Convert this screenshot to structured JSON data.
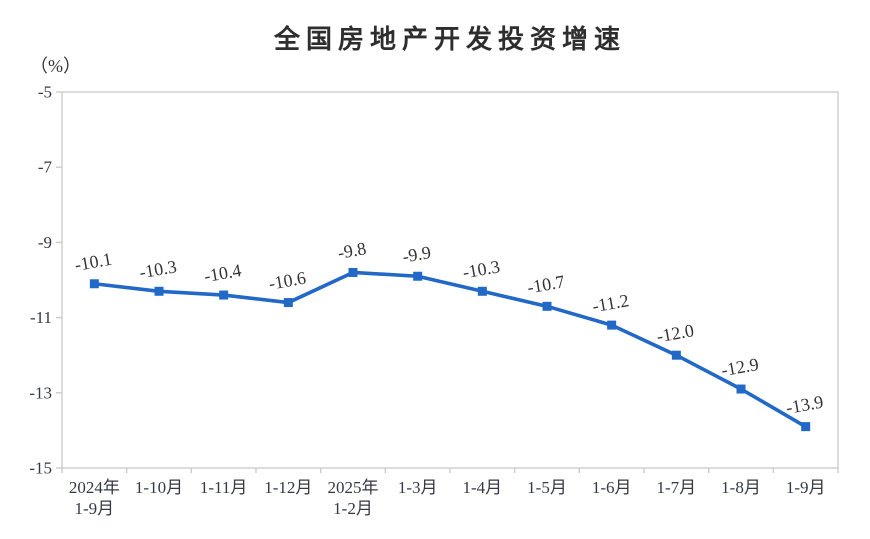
{
  "chart_data": {
    "type": "line",
    "title": "全国房地产开发投资增速",
    "unit_label": "（%）",
    "categories": [
      [
        "2024年",
        "1-9月"
      ],
      [
        "1-10月"
      ],
      [
        "1-11月"
      ],
      [
        "1-12月"
      ],
      [
        "2025年",
        "1-2月"
      ],
      [
        "1-3月"
      ],
      [
        "1-4月"
      ],
      [
        "1-5月"
      ],
      [
        "1-6月"
      ],
      [
        "1-7月"
      ],
      [
        "1-8月"
      ],
      [
        "1-9月"
      ]
    ],
    "values": [
      -10.1,
      -10.3,
      -10.4,
      -10.6,
      -9.8,
      -9.9,
      -10.3,
      -10.7,
      -11.2,
      -12.0,
      -12.9,
      -13.9
    ],
    "data_labels": [
      "-10.1",
      "-10.3",
      "-10.4",
      "-10.6",
      "-9.8",
      "-9.9",
      "-10.3",
      "-10.7",
      "-11.2",
      "-12.0",
      "-12.9",
      "-13.9"
    ],
    "yticks": [
      -5,
      -7,
      -9,
      -11,
      -13,
      -15
    ],
    "ylim": [
      -15,
      -5
    ],
    "xlabel": "",
    "ylabel": "（%）",
    "grid": false,
    "legend": "none",
    "marker": "square",
    "label_rotation_deg": -10,
    "line_color": "#2268C6",
    "axis_color": "#C8C8C8",
    "text_color": "#333333"
  }
}
